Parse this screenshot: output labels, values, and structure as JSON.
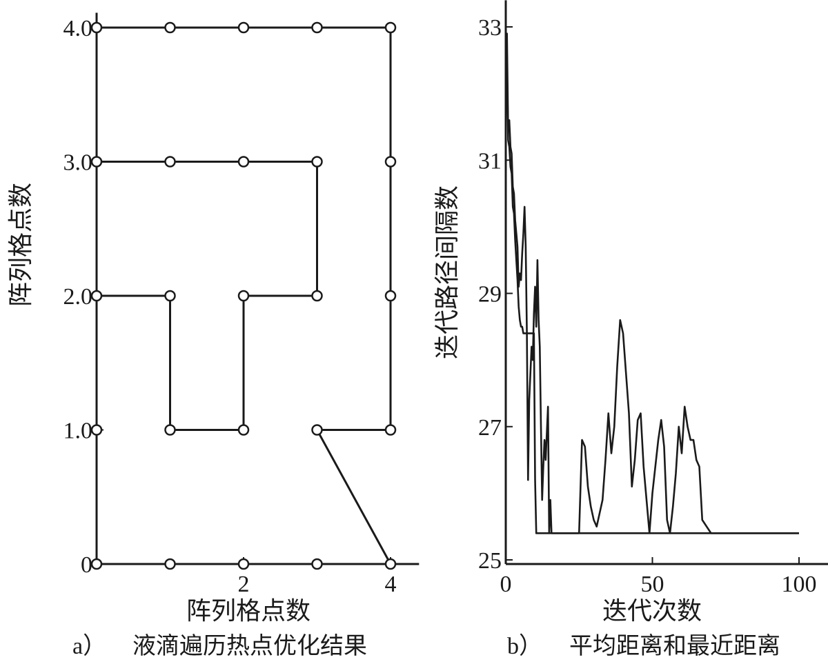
{
  "chart_data": [
    {
      "type": "line",
      "subplot_label": "a）",
      "caption": "液滴遍历热点优化结果",
      "xlabel": "阵列格点数",
      "ylabel": "阵列格点数",
      "xlim": [
        0,
        4.2
      ],
      "ylim": [
        0,
        4.1
      ],
      "x_ticks": [
        {
          "value": 2,
          "label": "2"
        },
        {
          "value": 4,
          "label": "4"
        }
      ],
      "y_ticks": [
        {
          "value": 0,
          "label": "0"
        },
        {
          "value": 1,
          "label": "1.0"
        },
        {
          "value": 2,
          "label": "2.0"
        },
        {
          "value": 3,
          "label": "3.0"
        },
        {
          "value": 4,
          "label": "4.0"
        }
      ],
      "grid": false,
      "marker": "open-circle",
      "path": [
        [
          0,
          0
        ],
        [
          1,
          0
        ],
        [
          2,
          0
        ],
        [
          3,
          0
        ],
        [
          4,
          0
        ],
        [
          3,
          1
        ],
        [
          4,
          1
        ],
        [
          4,
          2
        ],
        [
          4,
          3
        ],
        [
          4,
          4
        ],
        [
          3,
          4
        ],
        [
          2,
          4
        ],
        [
          1,
          4
        ],
        [
          0,
          4
        ],
        [
          0,
          3
        ],
        [
          1,
          3
        ],
        [
          2,
          3
        ],
        [
          3,
          3
        ],
        [
          3,
          2
        ],
        [
          2,
          2
        ],
        [
          2,
          1
        ],
        [
          1,
          1
        ],
        [
          1,
          2
        ],
        [
          0,
          2
        ],
        [
          0,
          1
        ],
        [
          0,
          0
        ]
      ]
    },
    {
      "type": "line",
      "subplot_label": "b）",
      "caption": "平均距离和最近距离",
      "xlabel": "迭代次数",
      "ylabel": "迭代路径间隔数",
      "xlim": [
        0,
        110
      ],
      "ylim": [
        25,
        33.4
      ],
      "x_ticks": [
        {
          "value": 0,
          "label": "0"
        },
        {
          "value": 50,
          "label": "50"
        },
        {
          "value": 100,
          "label": "100"
        }
      ],
      "y_ticks": [
        {
          "value": 25,
          "label": "25"
        },
        {
          "value": 27,
          "label": "27"
        },
        {
          "value": 29,
          "label": "29"
        },
        {
          "value": 31,
          "label": "31"
        },
        {
          "value": 33,
          "label": "33"
        }
      ],
      "grid": false,
      "series": [
        {
          "x": [
            0,
            0.4,
            0.8,
            1.2,
            1.6,
            2,
            2.4,
            2.8,
            3.2,
            3.6,
            4,
            4.4,
            4.8,
            5.2,
            5.6,
            6,
            6.4,
            6.8,
            7.2,
            7.6,
            8,
            8.4,
            8.8,
            9.2,
            9.6,
            10,
            10.4,
            10.8,
            11.2,
            11.6,
            12,
            12.4,
            12.8,
            13.2,
            13.6,
            14,
            14.4,
            14.8,
            15.2,
            15.6,
            16,
            16.4,
            16.8,
            17.2,
            17.6,
            18,
            18.4,
            18.8,
            19.2,
            19.6,
            20,
            25,
            26,
            27,
            28,
            29,
            30,
            31,
            32,
            33,
            34,
            35,
            36,
            37,
            38,
            39,
            40,
            41,
            42,
            43,
            44,
            45,
            46,
            47,
            48,
            49,
            50,
            51,
            52,
            53,
            54,
            55,
            56,
            57,
            58,
            59,
            60,
            61,
            62,
            63,
            64,
            65,
            66,
            67,
            70,
            80,
            90,
            100
          ],
          "y": [
            32.5,
            32.9,
            31.5,
            31.6,
            31.2,
            31.1,
            30.6,
            30.5,
            30.1,
            29.9,
            29.7,
            29.1,
            29.3,
            29.2,
            29.6,
            29.9,
            30.3,
            29.7,
            28.4,
            26.2,
            27.4,
            27.8,
            28.2,
            28.0,
            28.7,
            29.1,
            28.5,
            29.5,
            28.6,
            28.2,
            27.0,
            25.9,
            26.4,
            26.8,
            26.5,
            26.9,
            27.3,
            25.4,
            25.9,
            25.4,
            25.4,
            25.4,
            25.4,
            25.4,
            25.4,
            25.4,
            25.4,
            25.4,
            25.4,
            25.4,
            25.4,
            25.4,
            26.8,
            26.7,
            26.1,
            25.8,
            25.6,
            25.5,
            25.7,
            25.9,
            26.5,
            27.2,
            26.6,
            27.0,
            27.9,
            28.6,
            28.4,
            27.8,
            27.2,
            26.1,
            26.5,
            27.1,
            27.2,
            26.4,
            25.9,
            25.4,
            26.0,
            26.4,
            26.8,
            27.1,
            26.7,
            25.6,
            25.4,
            25.8,
            26.3,
            27.0,
            26.6,
            27.3,
            27.0,
            26.8,
            26.8,
            26.5,
            26.4,
            25.6,
            25.4,
            25.4,
            25.4,
            25.4
          ]
        },
        {
          "x": [
            0,
            0.4,
            0.8,
            1.2,
            1.6,
            2,
            2.4,
            2.8,
            3.2,
            3.6,
            4,
            4.4,
            4.8,
            5.2,
            5.6,
            6,
            6.4,
            6.8,
            7.2,
            7.6,
            8,
            8.4,
            8.8,
            9.2,
            9.6,
            10,
            10.4,
            10.8,
            11.2,
            11.6,
            12,
            12.4,
            12.8,
            13.2,
            13.6,
            14,
            14.4,
            14.8,
            15.2,
            15.6,
            16,
            16.4,
            16.8,
            17.2,
            17.6,
            18,
            18.4,
            18.8,
            19.2,
            19.6,
            20,
            25,
            26,
            27,
            28,
            29,
            30,
            31,
            32,
            33,
            34,
            35,
            36,
            37,
            38,
            39,
            40,
            41,
            42,
            43,
            44,
            45,
            46,
            47,
            48,
            49,
            50,
            51,
            52,
            53,
            54,
            55,
            56,
            57,
            58,
            59,
            60,
            61,
            62,
            63,
            64,
            65,
            66,
            67,
            70,
            80,
            90,
            100
          ],
          "y": [
            32.3,
            32.6,
            31.3,
            31.2,
            30.9,
            30.8,
            30.3,
            30.2,
            29.8,
            29.5,
            29.2,
            28.8,
            28.6,
            28.5,
            28.5,
            28.4,
            28.4,
            28.4,
            28.4,
            28.4,
            28.4,
            28.4,
            28.4,
            28.4,
            28.4,
            26.2,
            25.4,
            25.4,
            25.4,
            25.4,
            25.4,
            25.4,
            25.4,
            25.4,
            25.4,
            25.4,
            25.4,
            25.4,
            25.4,
            25.4,
            25.4,
            25.4,
            25.4,
            25.4,
            25.4,
            25.4,
            25.4,
            25.4,
            25.4,
            25.4,
            25.4,
            25.4,
            25.4,
            25.4,
            25.4,
            25.4,
            25.4,
            25.4,
            25.4,
            25.4,
            25.4,
            25.4,
            25.4,
            25.4,
            25.4,
            25.4,
            25.4,
            25.4,
            25.4,
            25.4,
            25.4,
            25.4,
            25.4,
            25.4,
            25.4,
            25.4,
            25.4,
            25.4,
            25.4,
            25.4,
            25.4,
            25.4,
            25.4,
            25.4,
            25.4,
            25.4,
            25.4,
            25.4,
            25.4,
            25.4,
            25.4,
            25.4,
            25.4,
            25.4,
            25.4,
            25.4,
            25.4,
            25.4
          ]
        }
      ]
    }
  ]
}
